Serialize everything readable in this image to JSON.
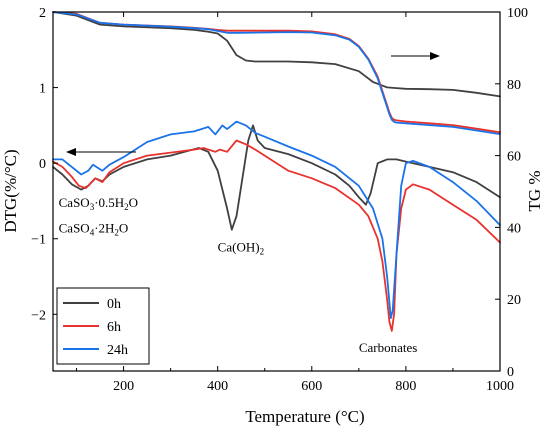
{
  "chart_data": {
    "type": "line",
    "xlabel": "Temperature (°C)",
    "ylabel_left": "DTG(%/°C)",
    "ylabel_right": "TG %",
    "xlim": [
      50,
      1000
    ],
    "ylim_left": [
      -2.75,
      2
    ],
    "ylim_right": [
      0,
      100
    ],
    "x_ticks": [
      200,
      400,
      600,
      800,
      1000
    ],
    "y_left_ticks": [
      2,
      1,
      0,
      -1,
      -2
    ],
    "y_right_ticks": [
      100,
      80,
      60,
      40,
      20,
      0
    ],
    "grid": false,
    "legend_position": "bottom-left",
    "legend_entries": [
      "0h",
      "6h",
      "24h"
    ],
    "colors": {
      "0h": "#404040",
      "6h": "#e8322d",
      "24h": "#1a73e8"
    },
    "annotations": [
      {
        "text": "Ca(OH)",
        "sub": "2",
        "x": 400,
        "y": -1.17
      },
      {
        "text": "Carbonates",
        "x": 700,
        "y": -2.5
      },
      {
        "text": "CaSO",
        "sub": "3",
        "mid": "·0.5H",
        "sub2": "2",
        "end": "O",
        "x": 62,
        "y": -0.58
      },
      {
        "text": "CaSO",
        "sub": "4",
        "mid": "·2H",
        "sub2": "2",
        "end": "O",
        "x": 62,
        "y": -0.92
      }
    ],
    "series": [
      {
        "name": "0h",
        "axis": "left",
        "kind": "DTG",
        "x": [
          50,
          70,
          90,
          110,
          125,
          140,
          155,
          170,
          200,
          250,
          300,
          330,
          360,
          380,
          400,
          420,
          430,
          440,
          455,
          465,
          475,
          485,
          500,
          550,
          600,
          650,
          680,
          700,
          715,
          725,
          740,
          760,
          780,
          800,
          850,
          900,
          950,
          1000
        ],
        "y": [
          -0.05,
          -0.15,
          -0.28,
          -0.35,
          -0.3,
          -0.2,
          -0.24,
          -0.15,
          -0.05,
          0.05,
          0.1,
          0.15,
          0.2,
          0.15,
          -0.1,
          -0.6,
          -0.88,
          -0.7,
          -0.1,
          0.3,
          0.5,
          0.3,
          0.2,
          0.12,
          0.0,
          -0.15,
          -0.3,
          -0.45,
          -0.55,
          -0.4,
          0.0,
          0.05,
          0.05,
          0.02,
          -0.05,
          -0.12,
          -0.25,
          -0.45
        ]
      },
      {
        "name": "6h",
        "axis": "left",
        "kind": "DTG",
        "x": [
          50,
          70,
          90,
          105,
          120,
          140,
          155,
          170,
          200,
          250,
          300,
          350,
          370,
          395,
          405,
          420,
          440,
          460,
          480,
          500,
          550,
          600,
          650,
          700,
          720,
          740,
          750,
          760,
          765,
          770,
          775,
          780,
          790,
          800,
          815,
          850,
          900,
          950,
          1000
        ],
        "y": [
          0.02,
          -0.05,
          -0.18,
          -0.3,
          -0.33,
          -0.2,
          -0.25,
          -0.12,
          0.0,
          0.1,
          0.14,
          0.18,
          0.2,
          0.15,
          0.18,
          0.15,
          0.3,
          0.25,
          0.18,
          0.1,
          -0.1,
          -0.2,
          -0.33,
          -0.55,
          -0.7,
          -1.0,
          -1.3,
          -1.8,
          -2.1,
          -2.22,
          -2.0,
          -1.2,
          -0.6,
          -0.35,
          -0.28,
          -0.35,
          -0.55,
          -0.75,
          -1.05
        ]
      },
      {
        "name": "24h",
        "axis": "left",
        "kind": "DTG",
        "x": [
          50,
          70,
          90,
          110,
          125,
          135,
          145,
          155,
          170,
          200,
          250,
          300,
          350,
          380,
          395,
          410,
          420,
          440,
          460,
          480,
          500,
          550,
          600,
          650,
          700,
          730,
          750,
          760,
          768,
          772,
          780,
          790,
          800,
          815,
          850,
          900,
          950,
          1000
        ],
        "y": [
          0.05,
          0.05,
          -0.05,
          -0.15,
          -0.1,
          -0.02,
          -0.06,
          -0.1,
          -0.02,
          0.08,
          0.28,
          0.38,
          0.42,
          0.48,
          0.38,
          0.5,
          0.45,
          0.55,
          0.5,
          0.4,
          0.35,
          0.22,
          0.1,
          -0.05,
          -0.3,
          -0.6,
          -1.0,
          -1.5,
          -2.05,
          -1.95,
          -1.2,
          -0.3,
          0.0,
          0.03,
          -0.05,
          -0.25,
          -0.5,
          -0.82
        ]
      },
      {
        "name": "0h",
        "axis": "right",
        "kind": "TG",
        "x": [
          50,
          100,
          150,
          200,
          300,
          350,
          380,
          400,
          420,
          440,
          460,
          480,
          500,
          550,
          600,
          650,
          700,
          730,
          760,
          780,
          800,
          850,
          900,
          950,
          1000
        ],
        "y": [
          100,
          99,
          96.5,
          96,
          95.5,
          95,
          94.5,
          94,
          92,
          88,
          86.5,
          86.2,
          86.2,
          86.2,
          86,
          85.5,
          83.5,
          80.5,
          79,
          78.8,
          78.6,
          78.5,
          78.3,
          77.5,
          76.5
        ]
      },
      {
        "name": "6h",
        "axis": "right",
        "kind": "TG",
        "x": [
          50,
          100,
          150,
          200,
          300,
          350,
          380,
          400,
          420,
          450,
          500,
          550,
          600,
          650,
          680,
          700,
          720,
          740,
          750,
          760,
          765,
          770,
          775,
          780,
          800,
          850,
          900,
          950,
          1000
        ],
        "y": [
          100,
          99.5,
          97,
          96.5,
          96,
          95.6,
          95.3,
          95,
          94.8,
          94.8,
          94.8,
          94.8,
          94.6,
          93.8,
          92.5,
          90.5,
          87,
          82,
          78,
          74,
          72,
          70.5,
          70,
          69.8,
          69.5,
          69,
          68.5,
          67.5,
          66.5
        ]
      },
      {
        "name": "24h",
        "axis": "right",
        "kind": "TG",
        "x": [
          50,
          100,
          150,
          200,
          300,
          350,
          380,
          400,
          420,
          450,
          500,
          550,
          600,
          650,
          680,
          700,
          720,
          740,
          750,
          760,
          765,
          770,
          775,
          780,
          800,
          850,
          900,
          950,
          1000
        ],
        "y": [
          100,
          99.3,
          97,
          96.5,
          95.9,
          95.5,
          95.2,
          94.7,
          94.2,
          94.2,
          94.3,
          94.4,
          94.3,
          93.5,
          92.3,
          90.3,
          86.8,
          81.5,
          77.5,
          73.5,
          71.5,
          70,
          69.4,
          69.2,
          69,
          68.5,
          68,
          67,
          66
        ]
      }
    ]
  }
}
